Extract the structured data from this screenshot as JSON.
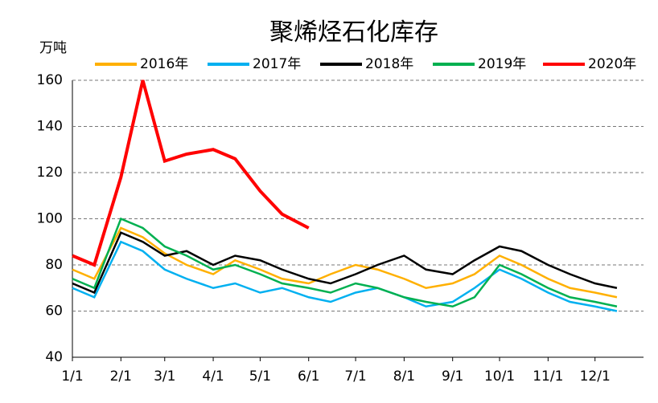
{
  "chart_data": {
    "type": "line",
    "title": "聚烯烃石化库存",
    "y_label": "万吨",
    "x": [
      1,
      15,
      32,
      46,
      60,
      74,
      91,
      105,
      121,
      135,
      152,
      166,
      182,
      196,
      213,
      227,
      244,
      258,
      274,
      288,
      305,
      319,
      335,
      349
    ],
    "xlim": [
      1,
      366
    ],
    "xticks": [
      {
        "value": 1,
        "label": "1/1"
      },
      {
        "value": 32,
        "label": "2/1"
      },
      {
        "value": 60,
        "label": "3/1"
      },
      {
        "value": 91,
        "label": "4/1"
      },
      {
        "value": 121,
        "label": "5/1"
      },
      {
        "value": 152,
        "label": "6/1"
      },
      {
        "value": 182,
        "label": "7/1"
      },
      {
        "value": 213,
        "label": "8/1"
      },
      {
        "value": 244,
        "label": "9/1"
      },
      {
        "value": 274,
        "label": "10/1"
      },
      {
        "value": 305,
        "label": "11/1"
      },
      {
        "value": 335,
        "label": "12/1"
      }
    ],
    "ylim": [
      40,
      160
    ],
    "yticks": [
      40,
      60,
      80,
      100,
      120,
      140,
      160
    ],
    "grid": true,
    "series": [
      {
        "name": "2016年",
        "color": "#ffb000",
        "values": [
          78,
          74,
          96,
          92,
          85,
          80,
          76,
          82,
          78,
          74,
          72,
          76,
          80,
          78,
          74,
          70,
          72,
          76,
          84,
          80,
          74,
          70,
          68,
          66
        ]
      },
      {
        "name": "2017年",
        "color": "#00b0f0",
        "values": [
          70,
          66,
          90,
          86,
          78,
          74,
          70,
          72,
          68,
          70,
          66,
          64,
          68,
          70,
          66,
          62,
          64,
          70,
          78,
          74,
          68,
          64,
          62,
          60
        ]
      },
      {
        "name": "2018年",
        "color": "#000000",
        "values": [
          72,
          68,
          94,
          90,
          84,
          86,
          80,
          84,
          82,
          78,
          74,
          72,
          76,
          80,
          84,
          78,
          76,
          82,
          88,
          86,
          80,
          76,
          72,
          70
        ]
      },
      {
        "name": "2019年",
        "color": "#00b050",
        "values": [
          74,
          70,
          100,
          96,
          88,
          84,
          78,
          80,
          76,
          72,
          70,
          68,
          72,
          70,
          66,
          64,
          62,
          66,
          80,
          76,
          70,
          66,
          64,
          62
        ]
      },
      {
        "name": "2020年",
        "color": "#ff0000",
        "values": [
          84,
          80,
          118,
          160,
          125,
          128,
          130,
          126,
          112,
          102,
          96,
          null,
          null,
          null,
          null,
          null,
          null,
          null,
          null,
          null,
          null,
          null,
          null,
          null
        ]
      }
    ]
  }
}
